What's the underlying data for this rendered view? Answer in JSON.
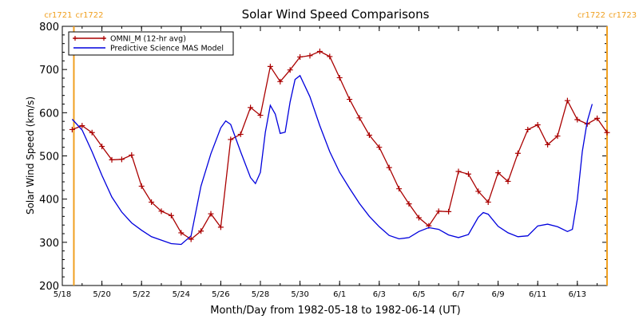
{
  "chart_data": {
    "type": "line",
    "title": "Solar Wind Speed Comparisons",
    "xlabel": "Month/Day from 1982-05-18 to 1982-06-14 (UT)",
    "ylabel": "Solar Wind Speed (km/s)",
    "x_ticks": [
      "5/18",
      "5/20",
      "5/22",
      "5/24",
      "5/26",
      "5/28",
      "5/30",
      "6/1",
      "6/3",
      "6/5",
      "6/7",
      "6/9",
      "6/11",
      "6/13"
    ],
    "ylim": [
      200,
      800
    ],
    "y_ticks": [
      "200",
      "300",
      "400",
      "500",
      "600",
      "700",
      "800"
    ],
    "legend_position": "top-left",
    "rotation_markers": [
      {
        "label_left": "cr1721",
        "label_right": "cr1722",
        "x": "1982-05-18T14:00",
        "color": "#f0a020"
      },
      {
        "label_left": "cr1722",
        "label_right": "cr1723",
        "x": "1982-06-14T12:00",
        "color": "#f0a020"
      }
    ],
    "series": [
      {
        "name": "OMNI_M (12-hr avg)",
        "color": "#aa0000",
        "marker": "plus",
        "points": [
          [
            "1982-05-18T12:00",
            561
          ],
          [
            "1982-05-19T00:00",
            570
          ],
          [
            "1982-05-19T12:00",
            554
          ],
          [
            "1982-05-20T00:00",
            522
          ],
          [
            "1982-05-20T12:00",
            491
          ],
          [
            "1982-05-21T00:00",
            492
          ],
          [
            "1982-05-21T12:00",
            502
          ],
          [
            "1982-05-22T00:00",
            430
          ],
          [
            "1982-05-22T12:00",
            393
          ],
          [
            "1982-05-23T00:00",
            372
          ],
          [
            "1982-05-23T12:00",
            362
          ],
          [
            "1982-05-24T00:00",
            322
          ],
          [
            "1982-05-24T12:00",
            307
          ],
          [
            "1982-05-25T00:00",
            326
          ],
          [
            "1982-05-25T12:00",
            366
          ],
          [
            "1982-05-26T00:00",
            335
          ],
          [
            "1982-05-26T12:00",
            538
          ],
          [
            "1982-05-27T00:00",
            550
          ],
          [
            "1982-05-27T12:00",
            612
          ],
          [
            "1982-05-28T00:00",
            594
          ],
          [
            "1982-05-28T12:00",
            707
          ],
          [
            "1982-05-29T00:00",
            672
          ],
          [
            "1982-05-29T12:00",
            699
          ],
          [
            "1982-05-30T00:00",
            729
          ],
          [
            "1982-05-30T12:00",
            732
          ],
          [
            "1982-05-31T00:00",
            742
          ],
          [
            "1982-05-31T12:00",
            730
          ],
          [
            "1982-06-01T00:00",
            681
          ],
          [
            "1982-06-01T12:00",
            631
          ],
          [
            "1982-06-02T00:00",
            588
          ],
          [
            "1982-06-02T12:00",
            548
          ],
          [
            "1982-06-03T00:00",
            520
          ],
          [
            "1982-06-03T12:00",
            473
          ],
          [
            "1982-06-04T00:00",
            424
          ],
          [
            "1982-06-04T12:00",
            389
          ],
          [
            "1982-06-05T00:00",
            357
          ],
          [
            "1982-06-05T12:00",
            338
          ],
          [
            "1982-06-06T00:00",
            372
          ],
          [
            "1982-06-06T12:00",
            371
          ],
          [
            "1982-06-07T00:00",
            464
          ],
          [
            "1982-06-07T12:00",
            458
          ],
          [
            "1982-06-08T00:00",
            418
          ],
          [
            "1982-06-08T12:00",
            393
          ],
          [
            "1982-06-09T00:00",
            461
          ],
          [
            "1982-06-09T12:00",
            441
          ],
          [
            "1982-06-10T00:00",
            506
          ],
          [
            "1982-06-10T12:00",
            561
          ],
          [
            "1982-06-11T00:00",
            572
          ],
          [
            "1982-06-11T12:00",
            526
          ],
          [
            "1982-06-12T00:00",
            546
          ],
          [
            "1982-06-12T12:00",
            628
          ],
          [
            "1982-06-13T00:00",
            584
          ],
          [
            "1982-06-13T12:00",
            574
          ],
          [
            "1982-06-14T00:00",
            587
          ],
          [
            "1982-06-14T12:00",
            554
          ]
        ]
      },
      {
        "name": "Predictive Science MAS Model",
        "color": "#0000dd",
        "marker": "none",
        "points": [
          [
            "1982-05-18T12:00",
            585
          ],
          [
            "1982-05-19T00:00",
            560
          ],
          [
            "1982-05-19T12:00",
            510
          ],
          [
            "1982-05-20T00:00",
            455
          ],
          [
            "1982-05-20T12:00",
            405
          ],
          [
            "1982-05-21T00:00",
            370
          ],
          [
            "1982-05-21T12:00",
            345
          ],
          [
            "1982-05-22T00:00",
            328
          ],
          [
            "1982-05-22T12:00",
            313
          ],
          [
            "1982-05-23T00:00",
            305
          ],
          [
            "1982-05-23T12:00",
            297
          ],
          [
            "1982-05-24T00:00",
            295
          ],
          [
            "1982-05-24T12:00",
            315
          ],
          [
            "1982-05-25T00:00",
            430
          ],
          [
            "1982-05-25T12:00",
            505
          ],
          [
            "1982-05-26T00:00",
            565
          ],
          [
            "1982-05-26T06:00",
            581
          ],
          [
            "1982-05-26T12:00",
            573
          ],
          [
            "1982-05-27T00:00",
            510
          ],
          [
            "1982-05-27T12:00",
            450
          ],
          [
            "1982-05-27T18:00",
            436
          ],
          [
            "1982-05-28T00:00",
            462
          ],
          [
            "1982-05-28T06:00",
            555
          ],
          [
            "1982-05-28T12:00",
            617
          ],
          [
            "1982-05-28T18:00",
            597
          ],
          [
            "1982-05-29T00:00",
            552
          ],
          [
            "1982-05-29T06:00",
            555
          ],
          [
            "1982-05-29T12:00",
            625
          ],
          [
            "1982-05-29T18:00",
            677
          ],
          [
            "1982-05-30T00:00",
            686
          ],
          [
            "1982-05-30T12:00",
            637
          ],
          [
            "1982-05-31T00:00",
            570
          ],
          [
            "1982-05-31T12:00",
            510
          ],
          [
            "1982-06-01T00:00",
            462
          ],
          [
            "1982-06-01T12:00",
            425
          ],
          [
            "1982-06-02T00:00",
            390
          ],
          [
            "1982-06-02T12:00",
            360
          ],
          [
            "1982-06-03T00:00",
            336
          ],
          [
            "1982-06-03T12:00",
            316
          ],
          [
            "1982-06-04T00:00",
            308
          ],
          [
            "1982-06-04T12:00",
            311
          ],
          [
            "1982-06-05T00:00",
            325
          ],
          [
            "1982-06-05T12:00",
            334
          ],
          [
            "1982-06-06T00:00",
            330
          ],
          [
            "1982-06-06T12:00",
            317
          ],
          [
            "1982-06-07T00:00",
            311
          ],
          [
            "1982-06-07T12:00",
            318
          ],
          [
            "1982-06-08T00:00",
            358
          ],
          [
            "1982-06-08T06:00",
            369
          ],
          [
            "1982-06-08T12:00",
            365
          ],
          [
            "1982-06-09T00:00",
            337
          ],
          [
            "1982-06-09T12:00",
            322
          ],
          [
            "1982-06-10T00:00",
            313
          ],
          [
            "1982-06-10T12:00",
            315
          ],
          [
            "1982-06-11T00:00",
            338
          ],
          [
            "1982-06-11T12:00",
            342
          ],
          [
            "1982-06-12T00:00",
            336
          ],
          [
            "1982-06-12T12:00",
            325
          ],
          [
            "1982-06-12T18:00",
            330
          ],
          [
            "1982-06-13T00:00",
            400
          ],
          [
            "1982-06-13T06:00",
            510
          ],
          [
            "1982-06-13T12:00",
            580
          ],
          [
            "1982-06-13T18:00",
            620
          ]
        ]
      }
    ]
  }
}
